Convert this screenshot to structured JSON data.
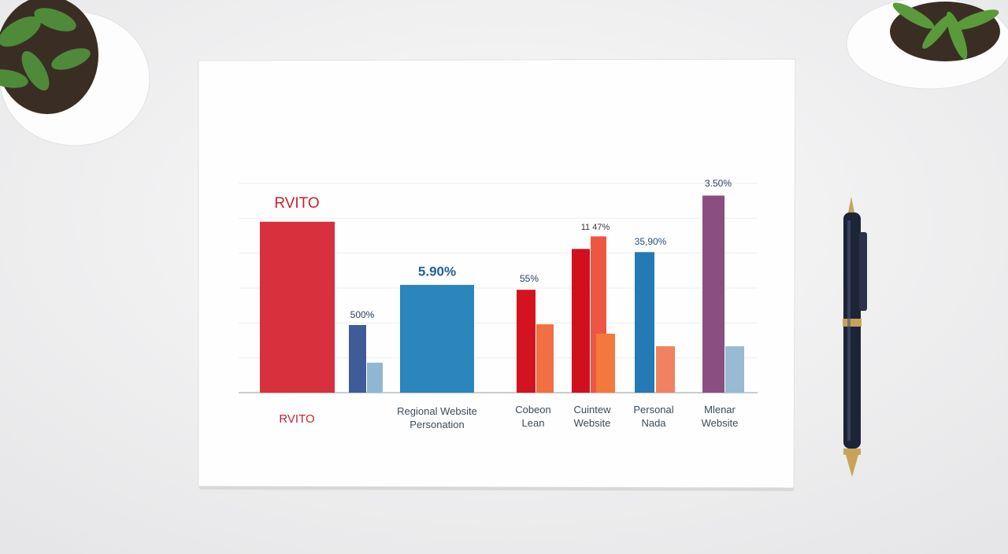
{
  "chart_data": {
    "type": "bar",
    "title": "RVITO",
    "groups": [
      {
        "label": "RVITO",
        "values": [
          4.9
        ],
        "colors": [
          "#d8303c"
        ]
      },
      {
        "label": null,
        "values": [
          1.94,
          0.86
        ],
        "colors": [
          "#3f5c98",
          "#8fb7d3"
        ]
      },
      {
        "label": "Regional Website Personation",
        "values": [
          3.09
        ],
        "colors": [
          "#2a86bd"
        ]
      },
      {
        "label": "Cobeon Lean",
        "values": [
          2.95,
          1.96
        ],
        "colors": [
          "#d3131f",
          "#f26e43"
        ]
      },
      {
        "label": "Cuintew Website",
        "values": [
          4.12,
          4.48,
          1.69
        ],
        "colors": [
          "#d0101e",
          "#ee5644",
          "#f4783c"
        ]
      },
      {
        "label": "Personal Nada",
        "values": [
          4.03,
          1.33
        ],
        "colors": [
          "#2579b4",
          "#f08260"
        ]
      },
      {
        "label": "Mlenar Website",
        "values": [
          5.65,
          1.33
        ],
        "colors": [
          "#8a4f80",
          "#98bad3"
        ]
      }
    ],
    "annotations": [
      "5.90%",
      "500%",
      "55%",
      "11 47%",
      "35,90%",
      "3.50%"
    ],
    "ylim": [
      0,
      6
    ],
    "yticks": [
      0,
      1,
      2,
      3,
      4,
      5,
      6
    ],
    "grid": true
  }
}
